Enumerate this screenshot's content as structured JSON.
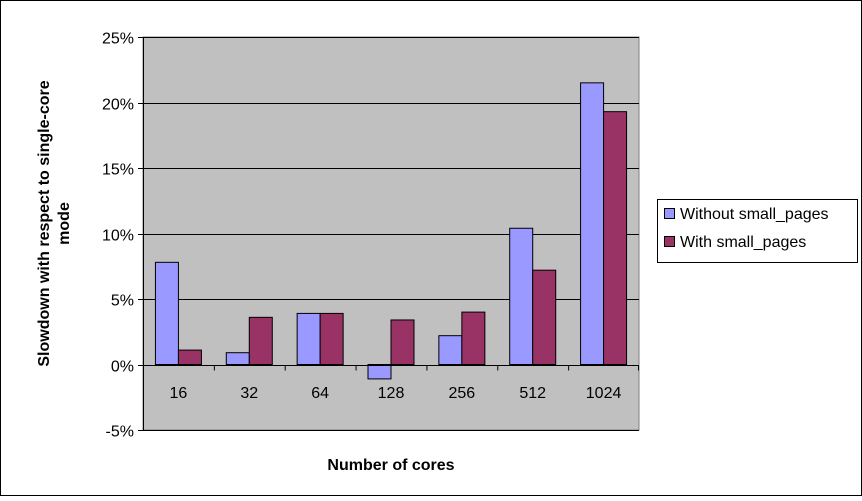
{
  "chart_data": {
    "type": "bar",
    "title": "",
    "xlabel": "Number of cores",
    "ylabel_lines": [
      "Slowdown with respect to single-core",
      "mode"
    ],
    "categories": [
      "16",
      "32",
      "64",
      "128",
      "256",
      "512",
      "1024"
    ],
    "series": [
      {
        "name": "Without small_pages",
        "color": "#9999ff",
        "values": [
          7.8,
          0.9,
          3.9,
          -1.1,
          2.2,
          10.4,
          21.5
        ]
      },
      {
        "name": "With small_pages",
        "color": "#993366",
        "values": [
          1.1,
          3.6,
          3.9,
          3.4,
          4.0,
          7.2,
          19.3
        ]
      }
    ],
    "ylim": [
      -5,
      25
    ],
    "yticks": [
      -5,
      0,
      5,
      10,
      15,
      20,
      25
    ],
    "ytick_labels": [
      "-5%",
      "0%",
      "5%",
      "10%",
      "15%",
      "20%",
      "25%"
    ],
    "grid": true,
    "plot_background": "#c0c0c0",
    "legend_position": "right"
  }
}
